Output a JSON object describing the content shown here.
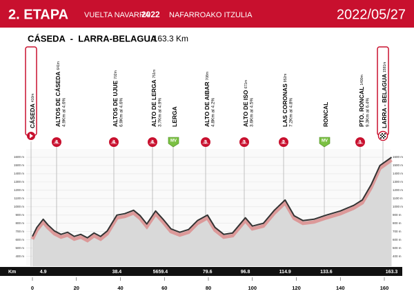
{
  "header": {
    "stage": "2. ETAPA",
    "race": "VUELTA NAVARRA",
    "year": "2022",
    "race_alt": "NAFARROAKO ITZULIA",
    "date": "2022/05/27",
    "route": "CÁSEDA  -  LARRA-BELAGUA",
    "distance": ": 163.3 Km"
  },
  "chart_data": {
    "type": "area",
    "x": [
      0,
      2,
      4.9,
      7,
      10,
      13,
      16,
      19,
      22,
      25,
      28,
      31,
      34,
      38.4,
      42,
      46,
      49,
      52,
      56,
      59.4,
      63,
      67,
      71,
      75,
      79.6,
      83,
      87,
      91,
      96.8,
      100,
      105,
      110,
      114.9,
      119,
      123,
      128,
      133.6,
      140,
      146,
      150,
      154,
      158,
      163.3
    ],
    "values": [
      642,
      750,
      850,
      783,
      708,
      667,
      692,
      642,
      667,
      625,
      683,
      642,
      708,
      900,
      917,
      958,
      892,
      792,
      950,
      850,
      733,
      692,
      725,
      833,
      900,
      750,
      667,
      683,
      867,
      767,
      800,
      958,
      1083,
      892,
      833,
      850,
      900,
      950,
      1017,
      1083,
      1267,
      1500,
      1600
    ],
    "color": "#333333",
    "fill": "#d9d9d9",
    "xlim": [
      0,
      163.3
    ],
    "ylim": [
      330,
      1700
    ],
    "xticks": [
      0,
      20,
      40,
      60,
      80,
      100,
      120,
      140,
      160
    ],
    "yticks": [
      {
        "value": 400,
        "label": "400 m"
      },
      {
        "value": 500,
        "label": "500 m"
      },
      {
        "value": 600,
        "label": "600 m"
      },
      {
        "value": 700,
        "label": "700 m"
      },
      {
        "value": 800,
        "label": "800 m"
      },
      {
        "value": 900,
        "label": "900 m"
      },
      {
        "value": 1000,
        "label": "1000 m"
      },
      {
        "value": 1100,
        "label": "1100 m"
      },
      {
        "value": 1200,
        "label": "1200 m"
      },
      {
        "value": 1300,
        "label": "1300 m"
      },
      {
        "value": 1400,
        "label": "1400 m"
      },
      {
        "value": 1500,
        "label": "1500 m"
      },
      {
        "value": 1600,
        "label": "1600 m"
      }
    ],
    "grid": true,
    "km_label": "Km",
    "km_marks": [
      4.9,
      38.4,
      56,
      59.4,
      79.6,
      96.8,
      114.9,
      133.6,
      163.3
    ],
    "waypoints": [
      {
        "name": "CÁSEDA",
        "altitude": "410m"
      },
      {
        "name": "ALTOS DE CÁSEDA",
        "altitude": "641m",
        "info": "4.9Km al 4.6%",
        "badge": "4"
      },
      {
        "name": "ALTOS DE UJUE",
        "altitude": "702m",
        "info": "6.9Km al 4.6%",
        "badge": "4"
      },
      {
        "name": "ALTO DE LERGA",
        "altitude": "751m",
        "info": "3.7Km al 4.9%",
        "badge": "4"
      },
      {
        "name": "LERGA",
        "badge": "MV"
      },
      {
        "name": "ALTO DE AIBAR",
        "altitude": "708m",
        "info": "4.8Km al 4.2%",
        "badge": "3"
      },
      {
        "name": "ALTO DE ISO",
        "altitude": "671m",
        "info": "3.6Km al 4.5%",
        "badge": "3"
      },
      {
        "name": "LAS CORONAS",
        "altitude": "952m",
        "info": "7.2Km al 4.8%",
        "badge": "2"
      },
      {
        "name": "RONCAL",
        "badge": "MV"
      },
      {
        "name": "PTO. RONCAL",
        "altitude": "1490m",
        "info": "9.3Km al 6.4%",
        "badge": "1"
      },
      {
        "name": "LARRA - BELAGUA",
        "altitude": "1591m"
      }
    ]
  }
}
